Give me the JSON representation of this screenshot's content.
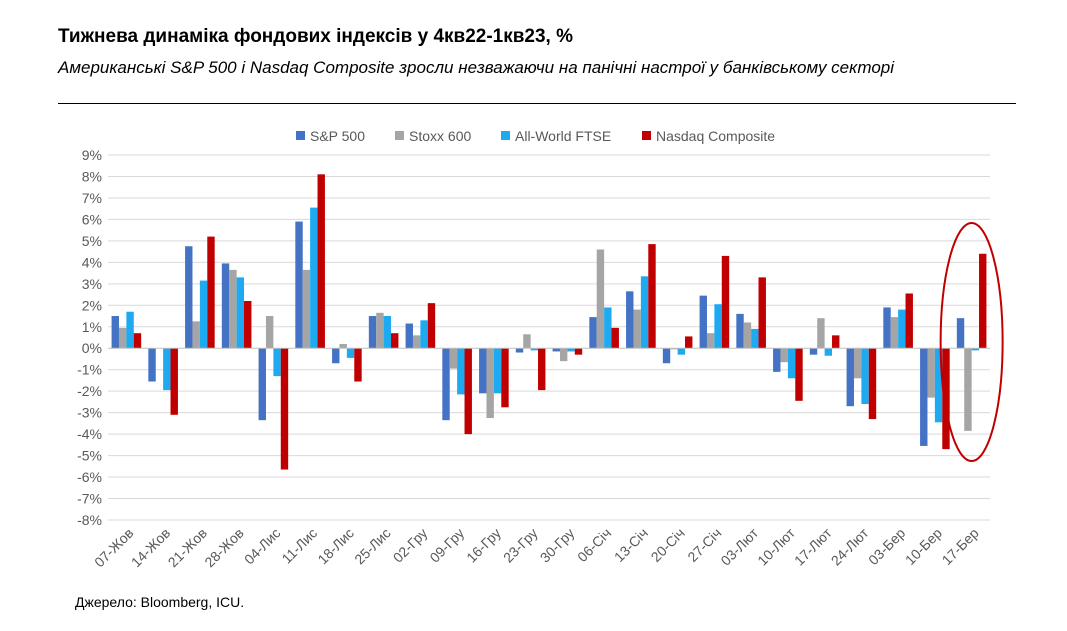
{
  "title": "Тижнева динаміка фондових індексів у 4кв22-1кв23, %",
  "subtitle": "Американські S&P 500 і Nasdaq Composite зросли незважаючи на панічні настрої у банківському секторі",
  "source": "Джерело: Bloomberg, ICU.",
  "colors": {
    "sp500": "#4472c4",
    "stoxx": "#a5a5a5",
    "ftse": "#1eaaf1",
    "nasdaq": "#c00000",
    "highlight": "#c00000",
    "grid": "#d9d9d9"
  },
  "chart_data": {
    "type": "bar",
    "title": "Тижнева динаміка фондових індексів у 4кв22-1кв23, %",
    "xlabel": "",
    "ylabel": "",
    "ylim": [
      -8,
      9
    ],
    "y_ticks": [
      "9%",
      "8%",
      "7%",
      "6%",
      "5%",
      "4%",
      "3%",
      "2%",
      "1%",
      "0%",
      "-1%",
      "-2%",
      "-3%",
      "-4%",
      "-5%",
      "-6%",
      "-7%",
      "-8%"
    ],
    "grid": true,
    "legend_position": "top",
    "categories": [
      "07-Жов",
      "14-Жов",
      "21-Жов",
      "28-Жов",
      "04-Лис",
      "11-Лис",
      "18-Лис",
      "25-Лис",
      "02-Гру",
      "09-Гру",
      "16-Гру",
      "23-Гру",
      "30-Гру",
      "06-Січ",
      "13-Січ",
      "20-Січ",
      "27-Січ",
      "03-Лют",
      "10-Лют",
      "17-Лют",
      "24-Лют",
      "03-Бер",
      "10-Бер",
      "17-Бер"
    ],
    "series": [
      {
        "name": "S&P 500",
        "color_key": "sp500",
        "values": [
          1.5,
          -1.55,
          4.75,
          3.95,
          -3.35,
          5.9,
          -0.7,
          1.5,
          1.15,
          -3.35,
          -2.1,
          -0.2,
          -0.15,
          1.45,
          2.65,
          -0.7,
          2.45,
          1.6,
          -1.1,
          -0.3,
          -2.7,
          1.9,
          -4.55,
          1.4
        ]
      },
      {
        "name": "Stoxx 600",
        "color_key": "stoxx",
        "values": [
          0.95,
          0.0,
          1.25,
          3.65,
          1.5,
          3.65,
          0.2,
          1.65,
          0.6,
          -0.95,
          -3.25,
          0.65,
          -0.6,
          4.6,
          1.8,
          -0.05,
          0.7,
          1.2,
          -0.65,
          1.4,
          -1.4,
          1.45,
          -2.3,
          -3.85
        ]
      },
      {
        "name": "All-World FTSE",
        "color_key": "ftse",
        "values": [
          1.7,
          -1.95,
          3.15,
          3.3,
          -1.3,
          6.55,
          -0.45,
          1.5,
          1.3,
          -2.15,
          -2.1,
          -0.1,
          -0.15,
          1.9,
          3.35,
          -0.3,
          2.05,
          0.9,
          -1.4,
          -0.35,
          -2.6,
          1.8,
          -3.45,
          -0.1
        ]
      },
      {
        "name": "Nasdaq Composite",
        "color_key": "nasdaq",
        "values": [
          0.7,
          -3.1,
          5.2,
          2.2,
          -5.65,
          8.1,
          -1.55,
          0.7,
          2.1,
          -4.0,
          -2.75,
          -1.95,
          -0.3,
          0.95,
          4.85,
          0.55,
          4.3,
          3.3,
          -2.45,
          0.6,
          -3.3,
          2.55,
          -4.7,
          4.4
        ]
      }
    ],
    "annotation": "red ellipse highlighting 17-Бер"
  }
}
